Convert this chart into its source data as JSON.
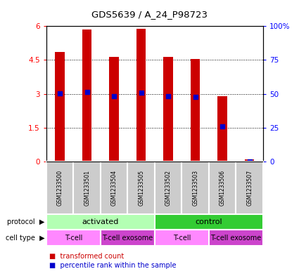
{
  "title": "GDS5639 / A_24_P98723",
  "samples": [
    "GSM1233500",
    "GSM1233501",
    "GSM1233504",
    "GSM1233505",
    "GSM1233502",
    "GSM1233503",
    "GSM1233506",
    "GSM1233507"
  ],
  "transformed_count": [
    4.85,
    5.87,
    4.65,
    5.88,
    4.65,
    4.55,
    2.88,
    0.08
  ],
  "percentile_rank": [
    3.02,
    3.08,
    2.9,
    3.06,
    2.9,
    2.86,
    1.55,
    0.0
  ],
  "bar_color": "#cc0000",
  "dot_color": "#0000cc",
  "ylim_left": [
    0,
    6
  ],
  "ylim_right": [
    0,
    100
  ],
  "yticks_left": [
    0,
    1.5,
    3,
    4.5,
    6
  ],
  "ytick_labels_left": [
    "0",
    "1.5",
    "3",
    "4.5",
    "6"
  ],
  "yticks_right": [
    0,
    25,
    50,
    75,
    100
  ],
  "ytick_labels_right": [
    "0",
    "25",
    "50",
    "75",
    "100%"
  ],
  "protocol_labels": [
    {
      "text": "activated",
      "start": 0,
      "end": 4,
      "color": "#b3ffb3"
    },
    {
      "text": "control",
      "start": 4,
      "end": 8,
      "color": "#33cc33"
    }
  ],
  "cell_type_labels": [
    {
      "text": "T-cell",
      "start": 0,
      "end": 2,
      "color": "#ff88ff"
    },
    {
      "text": "T-cell exosome",
      "start": 2,
      "end": 4,
      "color": "#cc44cc"
    },
    {
      "text": "T-cell",
      "start": 4,
      "end": 6,
      "color": "#ff88ff"
    },
    {
      "text": "T-cell exosome",
      "start": 6,
      "end": 8,
      "color": "#cc44cc"
    }
  ],
  "bar_width": 0.35,
  "background_color": "#ffffff",
  "sample_box_color": "#cccccc"
}
